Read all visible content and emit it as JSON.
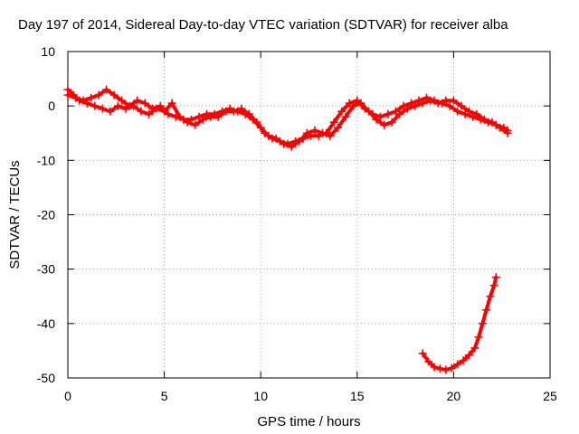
{
  "chart_data": {
    "type": "scatter",
    "title": "Day 197 of 2014, Sidereal Day-to-day VTEC variation (SDTVAR) for receiver alba",
    "xlabel": "GPS time / hours",
    "ylabel": "SDTVAR / TECUs",
    "xlim": [
      0,
      25
    ],
    "ylim": [
      -50,
      10
    ],
    "xticks": [
      "0",
      "5",
      "10",
      "15",
      "20",
      "25"
    ],
    "yticks": [
      "10",
      "0",
      "-10",
      "-20",
      "-30",
      "-40",
      "-50"
    ],
    "grid": true,
    "marker": "+",
    "series": [
      {
        "name": "SDTVAR trace 1",
        "color": "#ff0000",
        "x": [
          0.0,
          0.3,
          0.6,
          1.0,
          1.4,
          1.8,
          2.2,
          2.6,
          3.0,
          3.4,
          3.8,
          4.2,
          4.6,
          5.0,
          5.4,
          5.8,
          6.2,
          6.6,
          7.0,
          7.4,
          7.8,
          8.2,
          8.6,
          9.0,
          9.4,
          9.8,
          10.2,
          10.6,
          11.0,
          11.4,
          11.8,
          12.2,
          12.6,
          13.0,
          13.4,
          13.8,
          14.2,
          14.6,
          15.0,
          15.4,
          15.8,
          16.2,
          16.6,
          17.0,
          17.4,
          17.8,
          18.2,
          18.6,
          19.0,
          19.4,
          19.8,
          20.2,
          20.6,
          21.0,
          21.4,
          21.8,
          22.2,
          22.6,
          22.8
        ],
        "y": [
          3,
          2,
          1,
          0.5,
          0,
          -0.5,
          -1,
          0,
          -0.5,
          0,
          -1,
          -1.5,
          -0.5,
          -1,
          0.5,
          -2,
          -3,
          -3.5,
          -2.5,
          -2,
          -2,
          -1,
          -1,
          -0.5,
          -1.5,
          -3,
          -5,
          -6,
          -6.5,
          -7,
          -6.5,
          -6,
          -5.5,
          -5.5,
          -5,
          -3,
          -1,
          0.5,
          1,
          -0.5,
          -1.5,
          -2,
          -1.5,
          -1,
          0,
          0.5,
          1,
          1.5,
          1,
          0.5,
          0,
          -1,
          -1.5,
          -2,
          -2.5,
          -3,
          -3.5,
          -4,
          -4.5
        ]
      },
      {
        "name": "SDTVAR trace 2",
        "color": "#ff0000",
        "x": [
          0.0,
          0.4,
          0.8,
          1.2,
          1.6,
          2.0,
          2.4,
          2.8,
          3.2,
          3.6,
          4.0,
          4.4,
          4.8,
          5.2,
          5.6,
          6.0,
          6.4,
          6.8,
          7.2,
          7.6,
          8.0,
          8.4,
          8.8,
          9.2,
          9.6,
          10.0,
          10.4,
          10.8,
          11.2,
          11.6,
          12.0,
          12.4,
          12.8,
          13.2,
          13.6,
          14.0,
          14.4,
          14.8,
          15.2,
          15.6,
          16.0,
          16.4,
          16.8,
          17.2,
          17.6,
          18.0,
          18.4,
          18.8,
          19.2,
          19.6,
          20.0,
          20.4,
          20.8,
          21.2,
          21.6,
          22.0,
          22.4,
          22.8
        ],
        "y": [
          2,
          1.5,
          1,
          1.5,
          2,
          3,
          2,
          1,
          0,
          1,
          0.5,
          -0.5,
          0,
          -1.5,
          -2,
          -2.5,
          -2.5,
          -2,
          -1.5,
          -1.5,
          -1,
          -0.5,
          -1,
          -1.5,
          -2.5,
          -4,
          -5.5,
          -6,
          -7,
          -7.5,
          -6.5,
          -5,
          -4.5,
          -5,
          -5.5,
          -4,
          -2,
          0,
          0.5,
          -1,
          -2.5,
          -3.5,
          -3,
          -1.5,
          -0.5,
          0,
          0.5,
          1,
          0.5,
          1,
          1,
          0,
          -1,
          -1.5,
          -2.5,
          -3,
          -4,
          -5
        ]
      },
      {
        "name": "SDTVAR trace 3",
        "color": "#ff0000",
        "x": [
          18.4,
          18.7,
          19.0,
          19.3,
          19.6,
          19.9,
          20.2,
          20.5,
          20.8,
          21.1,
          21.3,
          21.5,
          21.7,
          21.9,
          22.1,
          22.2
        ],
        "y": [
          -45.5,
          -47,
          -48,
          -48.3,
          -48.5,
          -48.2,
          -47.5,
          -46.8,
          -45.8,
          -44.5,
          -42.5,
          -40,
          -37.5,
          -35,
          -33,
          -31.5
        ]
      }
    ]
  }
}
